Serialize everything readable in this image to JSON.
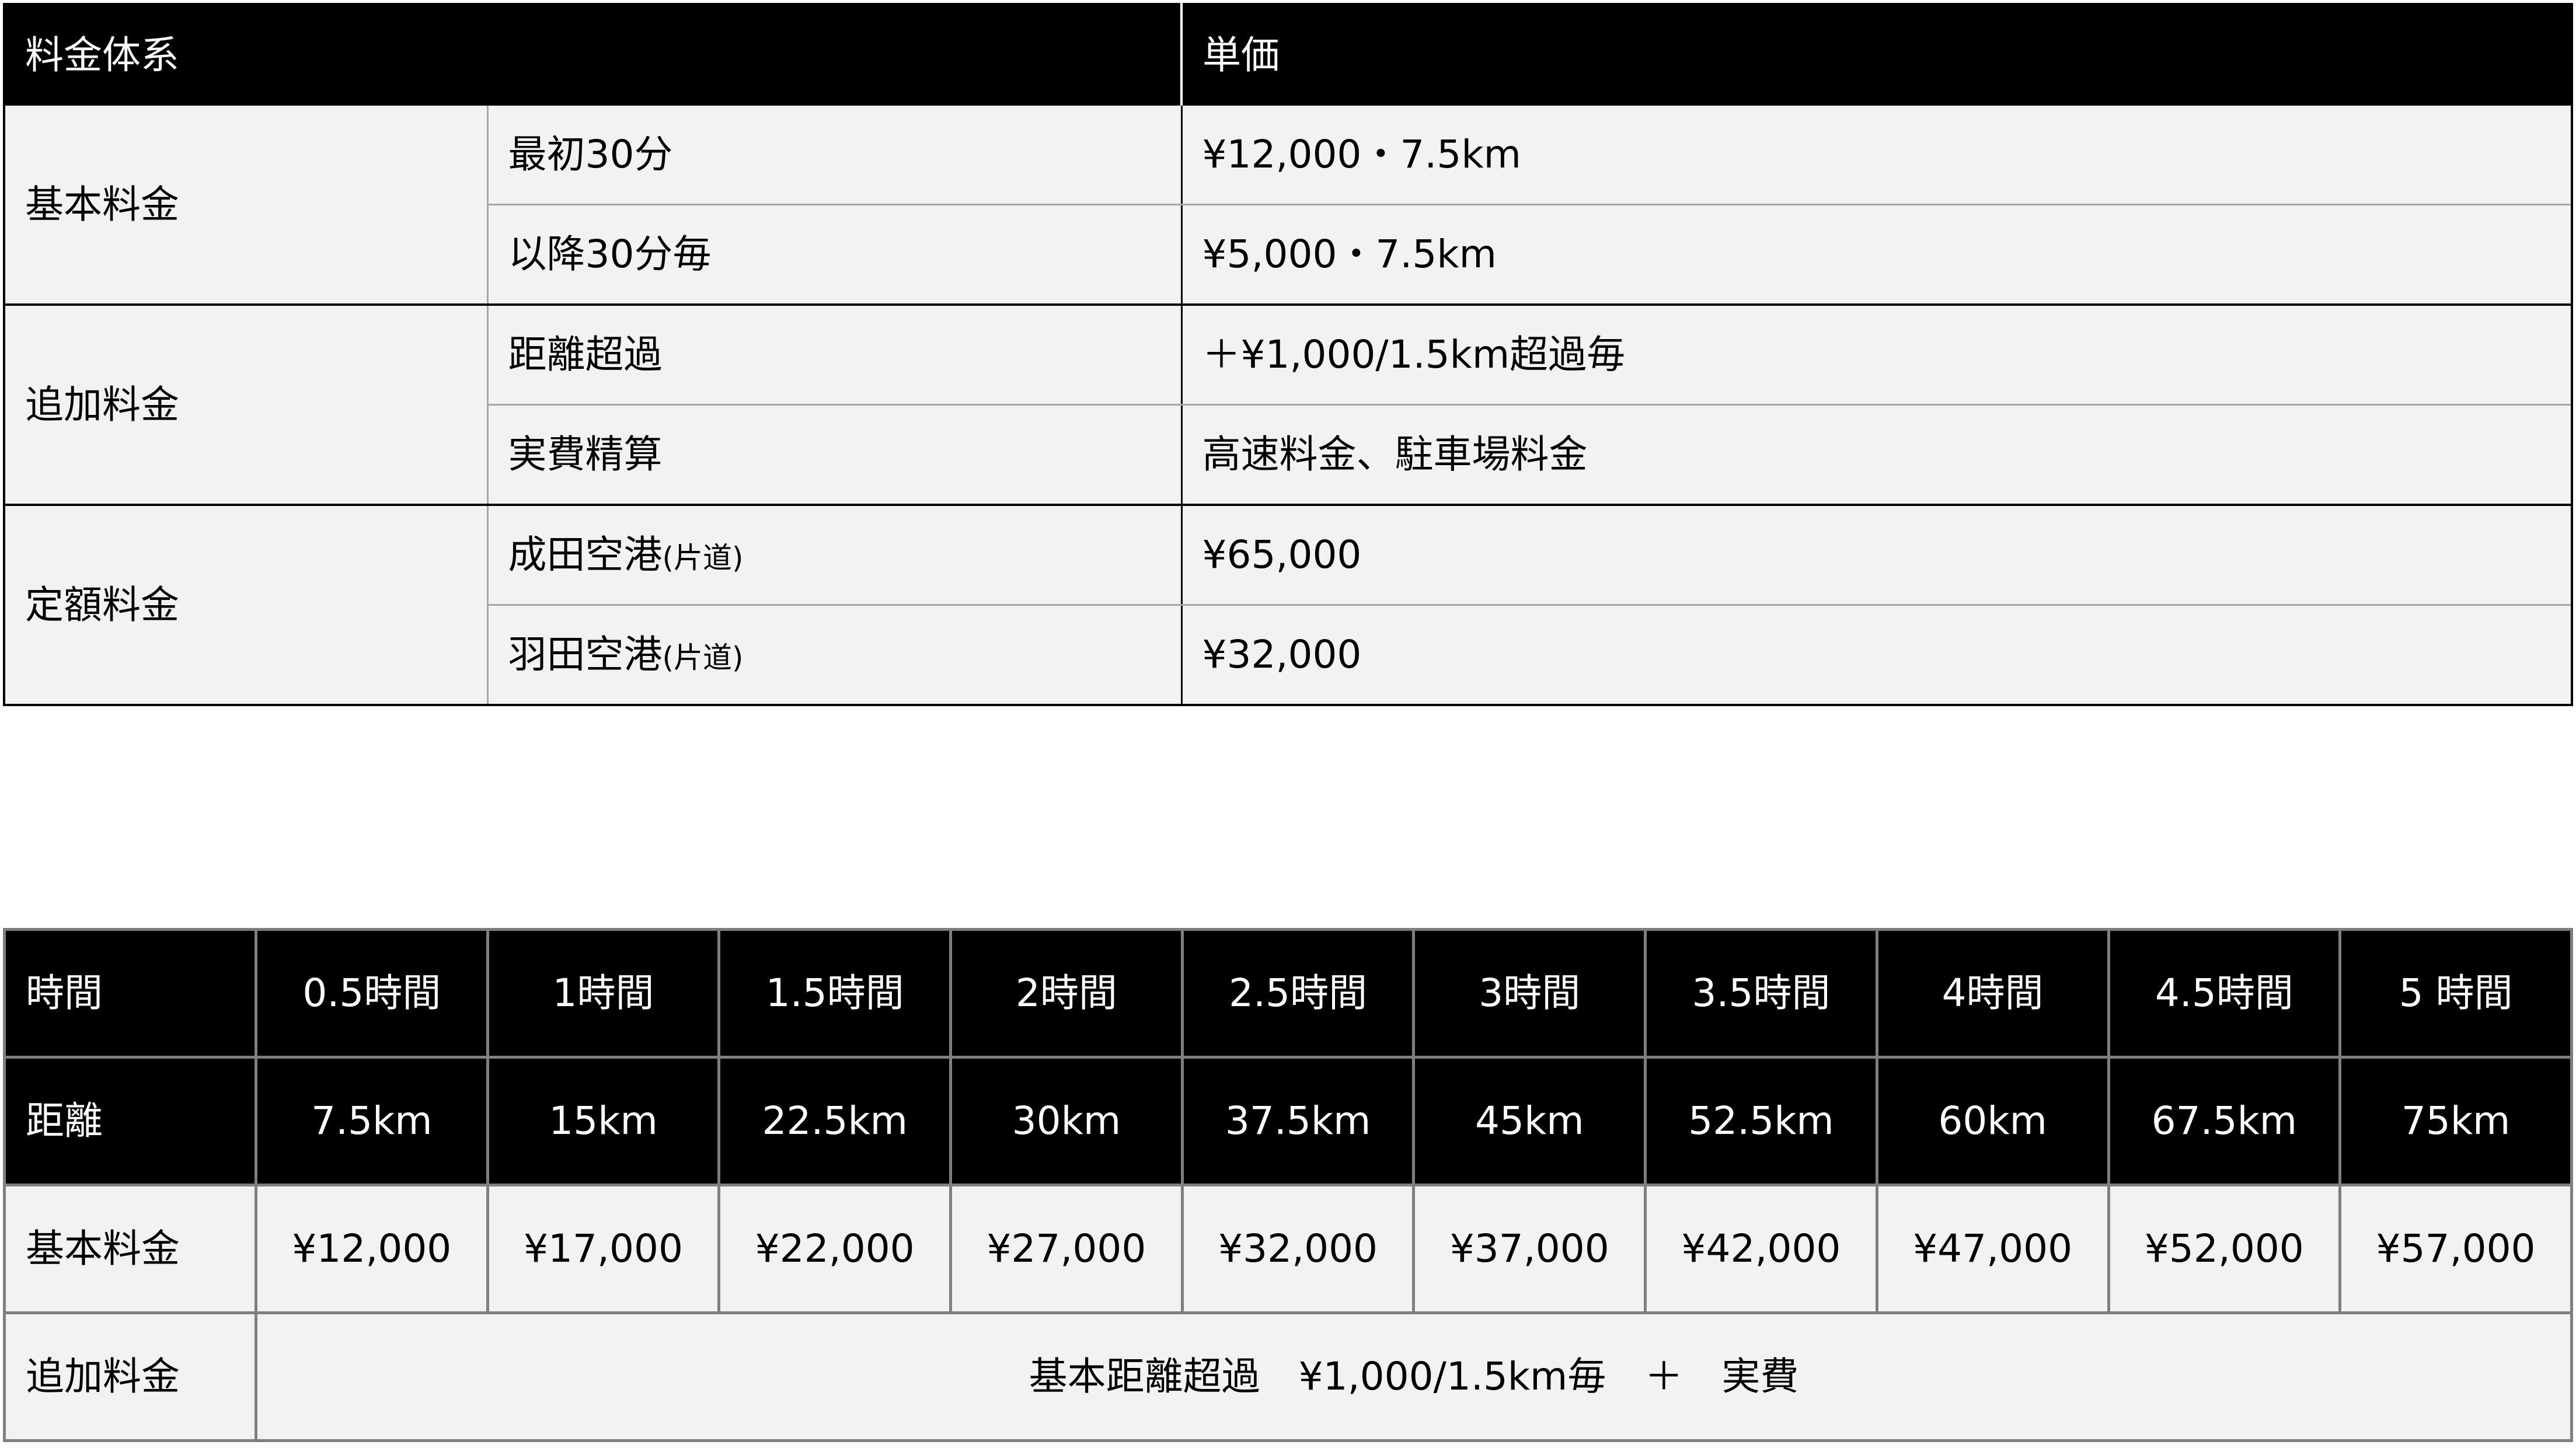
{
  "pricing_table": {
    "headers": {
      "category": "料金体系",
      "unit_price": "単価"
    },
    "groups": [
      {
        "label": "基本料金",
        "rows": [
          {
            "item": "最初30分",
            "note": "",
            "price": "¥12,000・7.5km"
          },
          {
            "item": "以降30分毎",
            "note": "",
            "price": "¥5,000・7.5km"
          }
        ]
      },
      {
        "label": "追加料金",
        "rows": [
          {
            "item": "距離超過",
            "note": "",
            "price": "＋¥1,000/1.5km超過毎"
          },
          {
            "item": "実費精算",
            "note": "",
            "price": "高速料金、駐車場料金"
          }
        ]
      },
      {
        "label": "定額料金",
        "rows": [
          {
            "item": "成田空港",
            "note": "(片道)",
            "price": "¥65,000"
          },
          {
            "item": "羽田空港",
            "note": "(片道)",
            "price": "¥32,000"
          }
        ]
      }
    ]
  },
  "rate_table": {
    "time_label": "時間",
    "times": [
      "0.5時間",
      "1時間",
      "1.5時間",
      "2時間",
      "2.5時間",
      "3時間",
      "3.5時間",
      "4時間",
      "4.5時間",
      "5 時間"
    ],
    "distance_label": "距離",
    "distances": [
      "7.5km",
      "15km",
      "22.5km",
      "30km",
      "37.5km",
      "45km",
      "52.5km",
      "60km",
      "67.5km",
      "75km"
    ],
    "base_fee_label": "基本料金",
    "base_fees": [
      "¥12,000",
      "¥17,000",
      "¥22,000",
      "¥27,000",
      "¥32,000",
      "¥37,000",
      "¥42,000",
      "¥47,000",
      "¥52,000",
      "¥57,000"
    ],
    "extra_fee_label": "追加料金",
    "extra_fee_text": "基本距離超過　¥1,000/1.5km毎　＋　実費"
  }
}
